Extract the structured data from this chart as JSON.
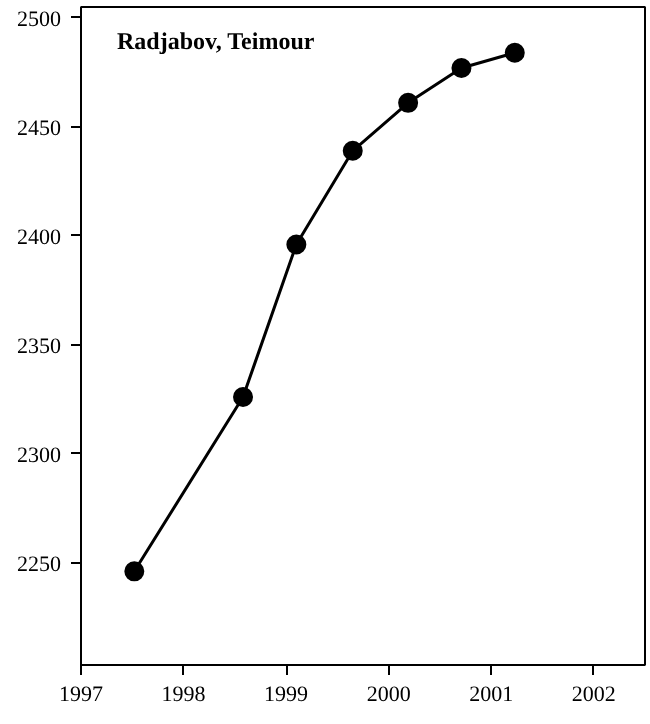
{
  "chart_data": {
    "type": "line",
    "title": "Radjabov, Teimour",
    "x": [
      1997.52,
      1998.58,
      1999.1,
      1999.65,
      2000.19,
      2000.71,
      2001.23
    ],
    "series": [
      {
        "color": "#000000",
        "values": [
          2246,
          2326,
          2396,
          2439,
          2461,
          2477,
          2484
        ]
      }
    ],
    "xlim": [
      1997,
      2002.5
    ],
    "xticks": [
      1997,
      1998,
      1999,
      2000,
      2001,
      2002
    ],
    "ylim": [
      2203,
      2505
    ],
    "yticks": [
      2250,
      2300,
      2350,
      2400,
      2450,
      2500
    ],
    "marker": "circle",
    "line_style": "solid",
    "grid": false
  }
}
